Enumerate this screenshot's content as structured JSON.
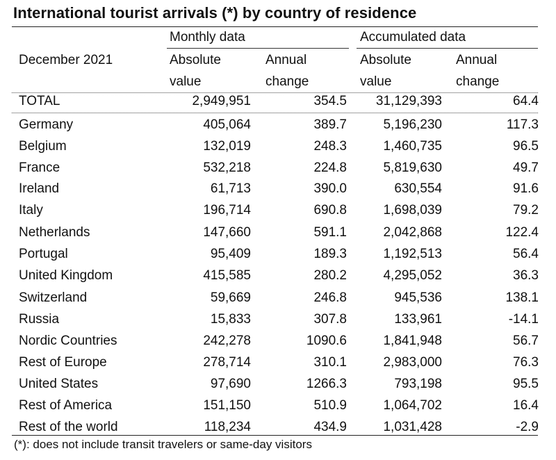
{
  "title": "International tourist arrivals (*) by country of residence",
  "header": {
    "period": "December 2021",
    "monthly_group": "Monthly data",
    "accumulated_group": "Accumulated data",
    "abs_line1": "Absolute",
    "abs_line2": "value",
    "chg_line1": "Annual",
    "chg_line2": "change"
  },
  "total": {
    "name": "TOTAL",
    "m_abs": "2,949,951",
    "m_chg": "354.5",
    "a_abs": "31,129,393",
    "a_chg": "64.4"
  },
  "rows": [
    {
      "name": "Germany",
      "m_abs": "405,064",
      "m_chg": "389.7",
      "a_abs": "5,196,230",
      "a_chg": "117.3"
    },
    {
      "name": "Belgium",
      "m_abs": "132,019",
      "m_chg": "248.3",
      "a_abs": "1,460,735",
      "a_chg": "96.5"
    },
    {
      "name": "France",
      "m_abs": "532,218",
      "m_chg": "224.8",
      "a_abs": "5,819,630",
      "a_chg": "49.7"
    },
    {
      "name": "Ireland",
      "m_abs": "61,713",
      "m_chg": "390.0",
      "a_abs": "630,554",
      "a_chg": "91.6"
    },
    {
      "name": "Italy",
      "m_abs": "196,714",
      "m_chg": "690.8",
      "a_abs": "1,698,039",
      "a_chg": "79.2"
    },
    {
      "name": "Netherlands",
      "m_abs": "147,660",
      "m_chg": "591.1",
      "a_abs": "2,042,868",
      "a_chg": "122.4"
    },
    {
      "name": "Portugal",
      "m_abs": "95,409",
      "m_chg": "189.3",
      "a_abs": "1,192,513",
      "a_chg": "56.4"
    },
    {
      "name": "United Kingdom",
      "m_abs": "415,585",
      "m_chg": "280.2",
      "a_abs": "4,295,052",
      "a_chg": "36.3"
    },
    {
      "name": "Switzerland",
      "m_abs": "59,669",
      "m_chg": "246.8",
      "a_abs": "945,536",
      "a_chg": "138.1"
    },
    {
      "name": "Russia",
      "m_abs": "15,833",
      "m_chg": "307.8",
      "a_abs": "133,961",
      "a_chg": "-14.1"
    },
    {
      "name": "Nordic Countries",
      "m_abs": "242,278",
      "m_chg": "1090.6",
      "a_abs": "1,841,948",
      "a_chg": "56.7"
    },
    {
      "name": "Rest of Europe",
      "m_abs": "278,714",
      "m_chg": "310.1",
      "a_abs": "2,983,000",
      "a_chg": "76.3"
    },
    {
      "name": "United States",
      "m_abs": "97,690",
      "m_chg": "1266.3",
      "a_abs": "793,198",
      "a_chg": "95.5"
    },
    {
      "name": "Rest of America",
      "m_abs": "151,150",
      "m_chg": "510.9",
      "a_abs": "1,064,702",
      "a_chg": "16.4"
    },
    {
      "name": "Rest of the world",
      "m_abs": "118,234",
      "m_chg": "434.9",
      "a_abs": "1,031,428",
      "a_chg": "-2.9"
    }
  ],
  "footnote": "(*): does not include transit travelers or same-day visitors"
}
